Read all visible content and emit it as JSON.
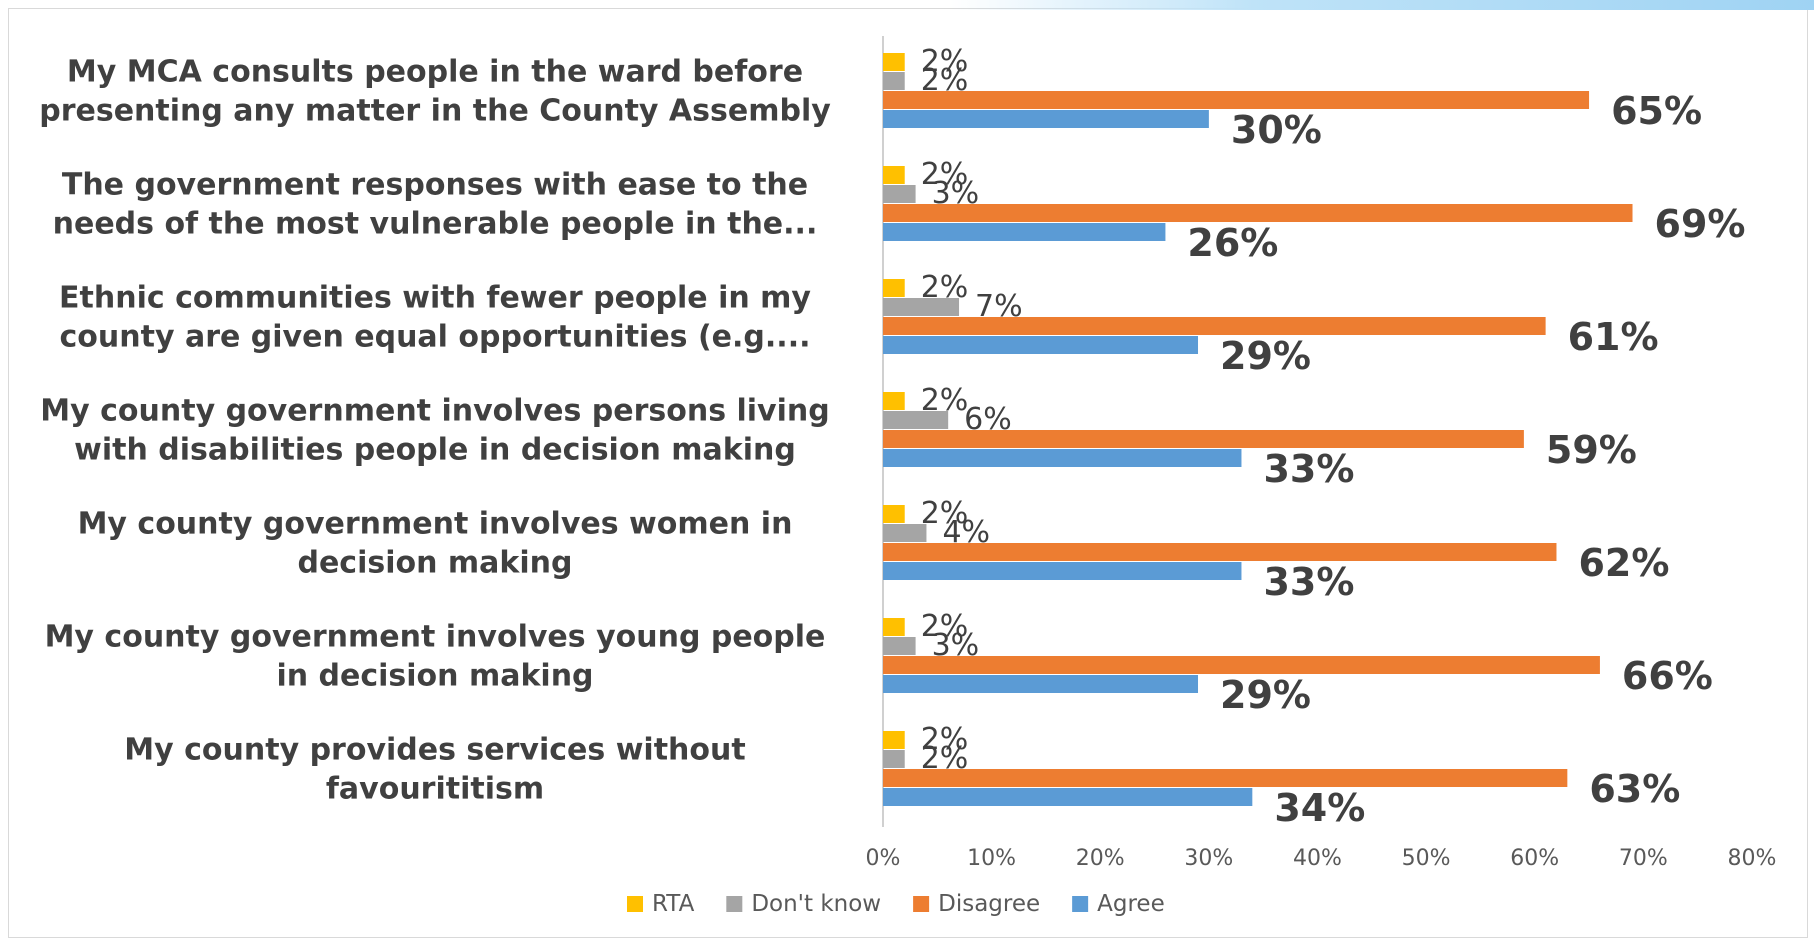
{
  "chart_data": {
    "type": "bar",
    "orientation": "horizontal",
    "categories": [
      "My MCA consults people in the ward before presenting any matter in the County Assembly",
      "The government responses with ease to the needs of the most vulnerable people in the...",
      "Ethnic communities with fewer people in my county are given equal opportunities (e.g....",
      "My county government involves persons living with disabilities people in decision making",
      "My county government involves women in decision making",
      "My county government involves young people in decision making",
      "My county provides services without favouritism"
    ],
    "category_lines": [
      [
        "My MCA consults people in the ward before",
        "presenting any matter in the County Assembly"
      ],
      [
        "The government responses with ease to the",
        "needs of the most vulnerable people in the..."
      ],
      [
        "Ethnic communities with fewer people in my",
        "county are given equal opportunities (e.g...."
      ],
      [
        "My county government involves persons living",
        "with disabilities people in decision making"
      ],
      [
        "My county government involves women in",
        "decision making"
      ],
      [
        "My county government involves young people",
        "in decision making"
      ],
      [
        "My county provides services without",
        "favourititism"
      ]
    ],
    "series": [
      {
        "name": "RTA",
        "color": "#FFC000",
        "values": [
          2,
          2,
          2,
          2,
          2,
          2,
          2
        ],
        "labels": [
          "2%",
          "2%",
          "2%",
          "2%",
          "2%",
          "2%",
          "2%"
        ]
      },
      {
        "name": "Don't know",
        "color": "#A5A5A5",
        "values": [
          2,
          3,
          7,
          6,
          4,
          3,
          2
        ],
        "labels": [
          "2%",
          "3%",
          "7%",
          "6%",
          "4%",
          "3%",
          "2%"
        ]
      },
      {
        "name": "Disagree",
        "color": "#ED7D31",
        "values": [
          65,
          69,
          61,
          59,
          62,
          66,
          63
        ],
        "labels": [
          "65%",
          "69%",
          "61%",
          "59%",
          "62%",
          "66%",
          "63%"
        ]
      },
      {
        "name": "Agree",
        "color": "#5B9BD5",
        "values": [
          30,
          26,
          29,
          33,
          33,
          29,
          34
        ],
        "labels": [
          "30%",
          "26%",
          "29%",
          "33%",
          "33%",
          "29%",
          "34%"
        ]
      }
    ],
    "x_ticks": [
      "0%",
      "10%",
      "20%",
      "30%",
      "40%",
      "50%",
      "60%",
      "70%",
      "80%"
    ],
    "xlim": [
      0,
      80
    ],
    "legend_position": "bottom",
    "grid": false
  }
}
